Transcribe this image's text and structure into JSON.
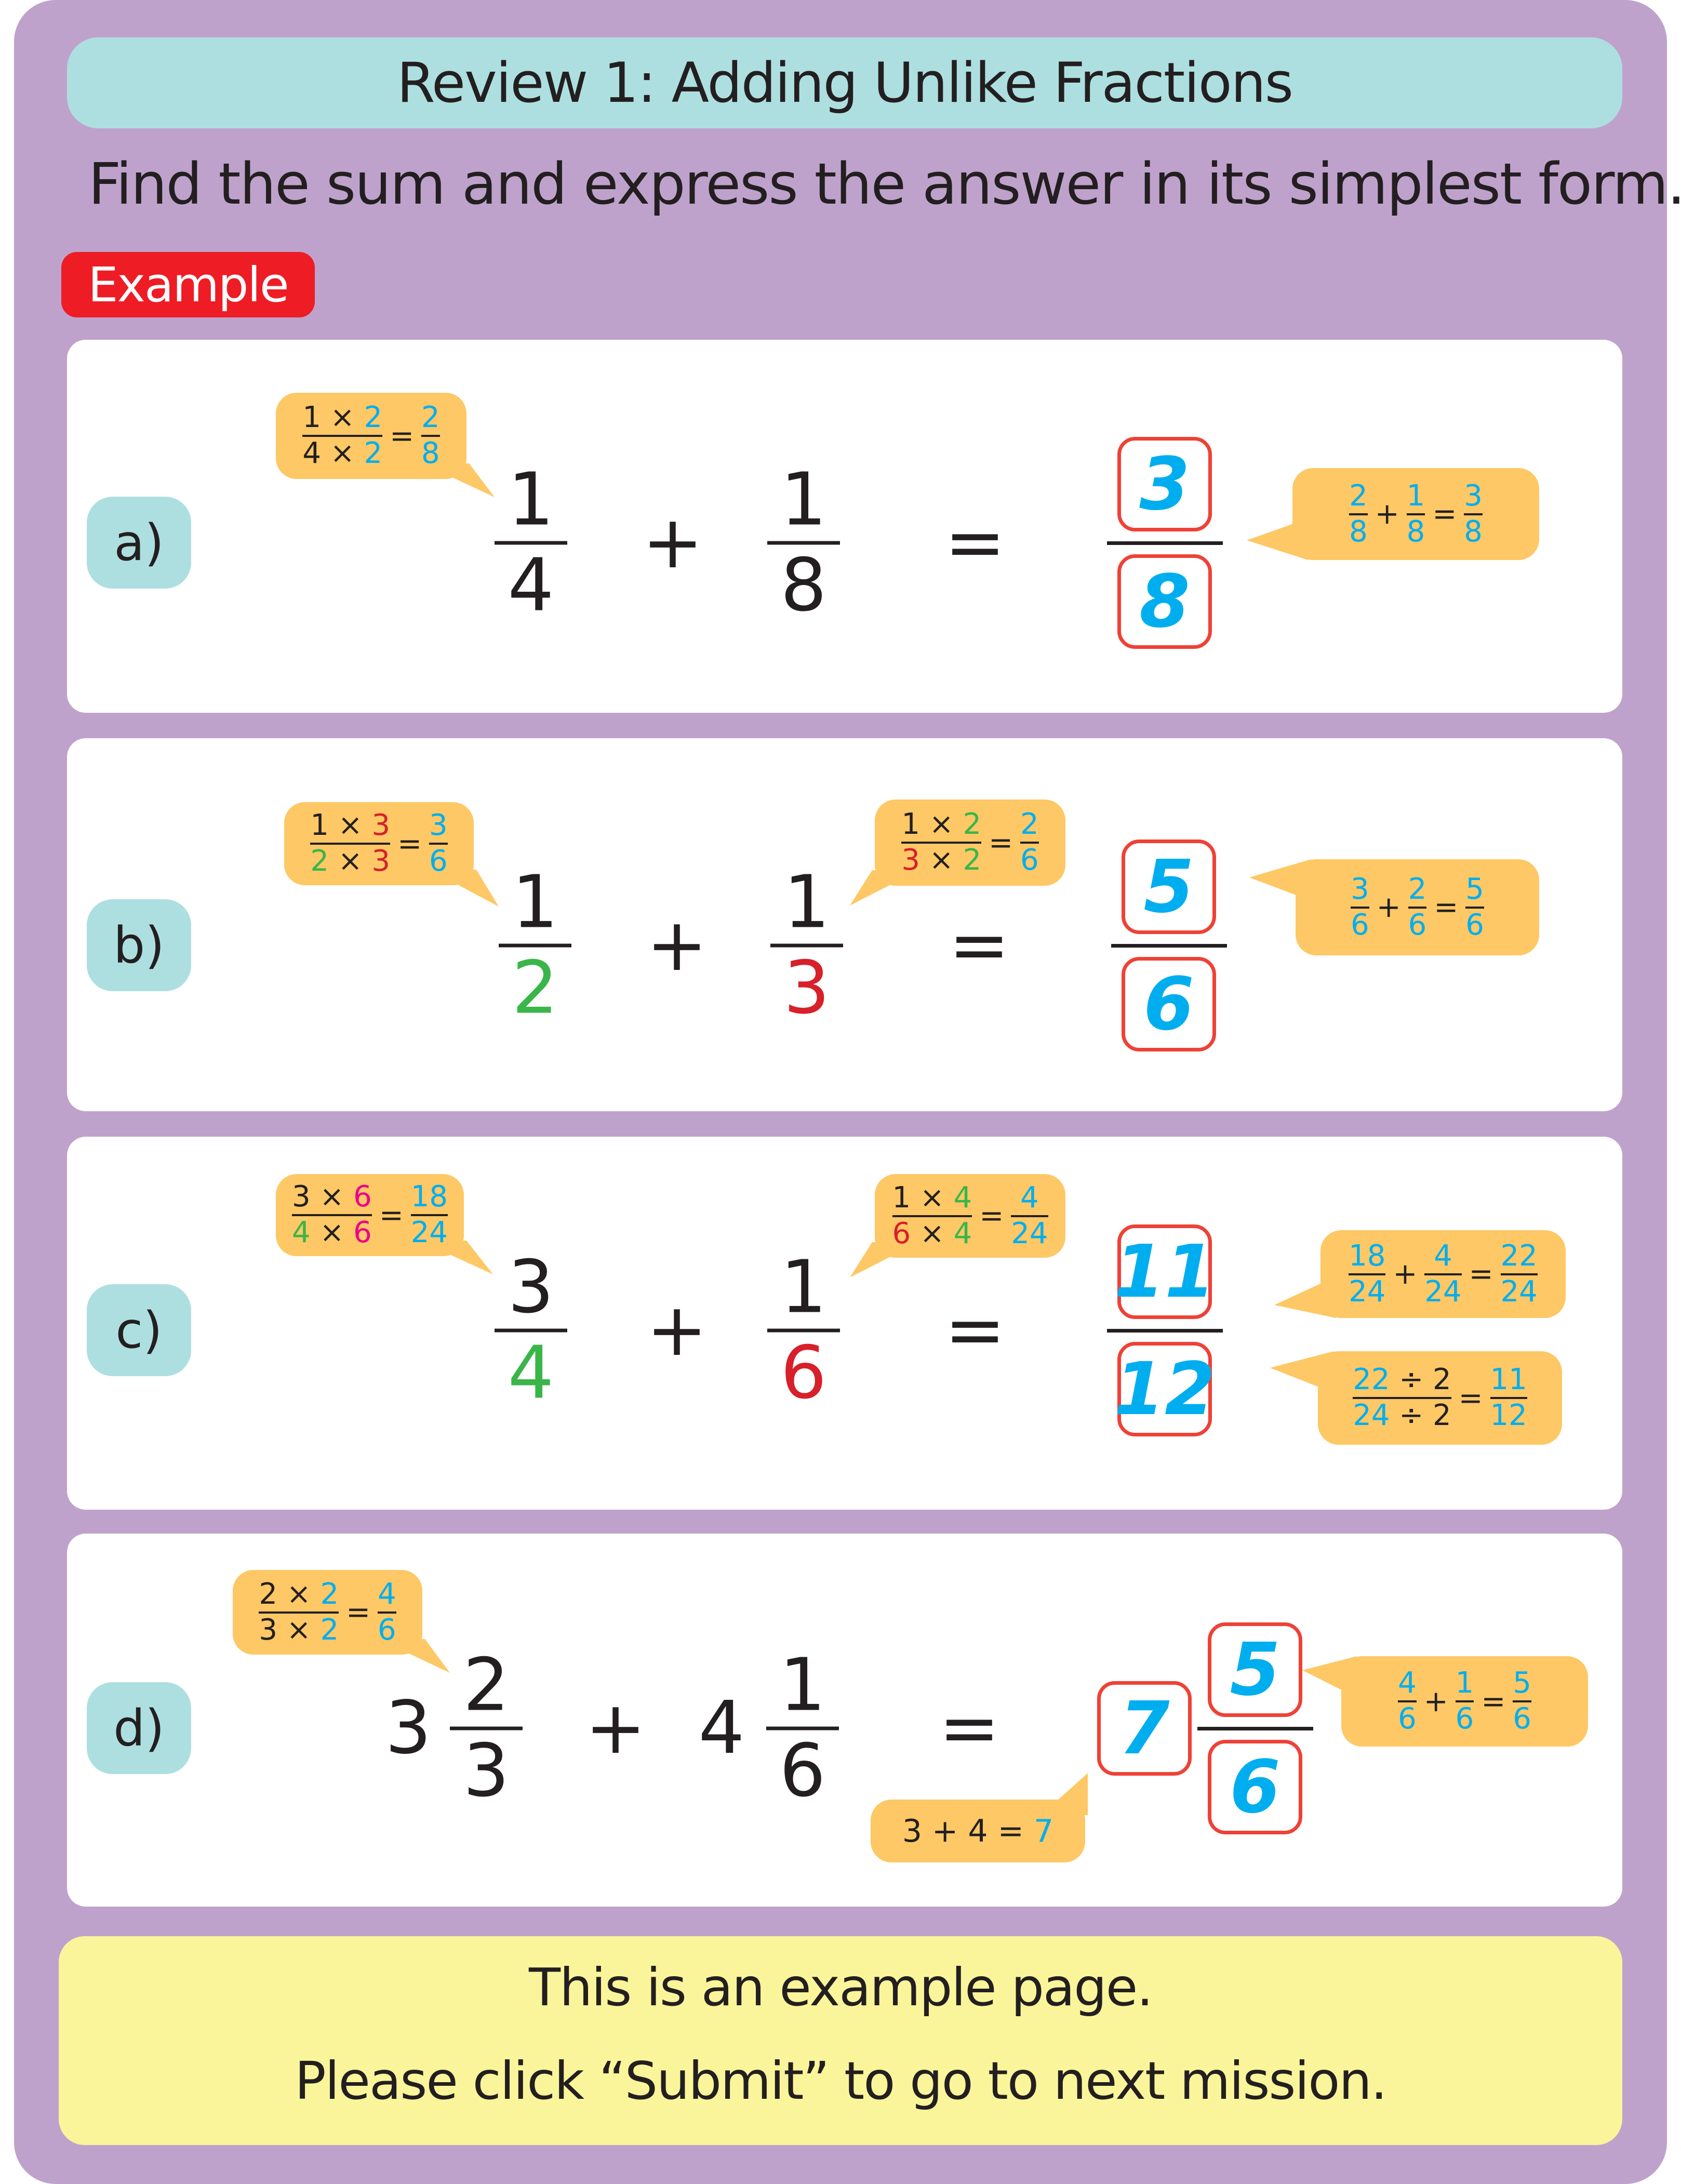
{
  "title": "Review 1: Adding Unlike Fractions",
  "instruction": "Find the sum and express the answer in its simplest form.",
  "example_badge": "Example",
  "colors": {
    "black": "#231F20",
    "blue": "#00AEEF",
    "green": "#3AB54A",
    "red": "#D7202A",
    "magenta": "#EC008C",
    "bubble": "#FDC865",
    "answer_box": "#EF4136",
    "pill": "#AEDFE0",
    "badge": "#EE1C25",
    "footer": "#FAF59A",
    "panel": "#BFA2CC"
  },
  "rows": [
    {
      "label": "a)",
      "terms": [
        {
          "n": {
            "t": "1",
            "c": "black"
          },
          "d": {
            "t": "4",
            "c": "black"
          }
        },
        {
          "n": {
            "t": "1",
            "c": "black"
          },
          "d": {
            "t": "8",
            "c": "black"
          }
        }
      ],
      "plus": "+",
      "equals": "=",
      "answer": {
        "n": "3",
        "d": "8"
      },
      "bubbles": [
        {
          "expr": [
            {
              "n": [
                {
                  "t": "1 × ",
                  "c": "black"
                },
                {
                  "t": "2",
                  "c": "blue"
                }
              ],
              "d": [
                {
                  "t": "4 × ",
                  "c": "black"
                },
                {
                  "t": "2",
                  "c": "blue"
                }
              ]
            },
            {
              "op": "="
            },
            {
              "n": [
                {
                  "t": "2",
                  "c": "blue"
                }
              ],
              "d": [
                {
                  "t": "8",
                  "c": "blue"
                }
              ]
            }
          ]
        },
        {
          "expr": [
            {
              "n": [
                {
                  "t": "2",
                  "c": "blue"
                }
              ],
              "d": [
                {
                  "t": "8",
                  "c": "blue"
                }
              ]
            },
            {
              "op": "+"
            },
            {
              "n": [
                {
                  "t": "1",
                  "c": "blue"
                }
              ],
              "d": [
                {
                  "t": "8",
                  "c": "blue"
                }
              ]
            },
            {
              "op": "="
            },
            {
              "n": [
                {
                  "t": "3",
                  "c": "blue"
                }
              ],
              "d": [
                {
                  "t": "8",
                  "c": "blue"
                }
              ]
            }
          ]
        }
      ]
    },
    {
      "label": "b)",
      "terms": [
        {
          "n": {
            "t": "1",
            "c": "black"
          },
          "d": {
            "t": "2",
            "c": "green"
          }
        },
        {
          "n": {
            "t": "1",
            "c": "black"
          },
          "d": {
            "t": "3",
            "c": "red"
          }
        }
      ],
      "plus": "+",
      "equals": "=",
      "answer": {
        "n": "5",
        "d": "6"
      },
      "bubbles": [
        {
          "expr": [
            {
              "n": [
                {
                  "t": "1 × ",
                  "c": "black"
                },
                {
                  "t": "3",
                  "c": "red"
                }
              ],
              "d": [
                {
                  "t": "2",
                  "c": "green"
                },
                {
                  "t": " × ",
                  "c": "black"
                },
                {
                  "t": "3",
                  "c": "red"
                }
              ]
            },
            {
              "op": "="
            },
            {
              "n": [
                {
                  "t": "3",
                  "c": "blue"
                }
              ],
              "d": [
                {
                  "t": "6",
                  "c": "blue"
                }
              ]
            }
          ]
        },
        {
          "expr": [
            {
              "n": [
                {
                  "t": "1 × ",
                  "c": "black"
                },
                {
                  "t": "2",
                  "c": "green"
                }
              ],
              "d": [
                {
                  "t": "3",
                  "c": "red"
                },
                {
                  "t": " × ",
                  "c": "black"
                },
                {
                  "t": "2",
                  "c": "green"
                }
              ]
            },
            {
              "op": "="
            },
            {
              "n": [
                {
                  "t": "2",
                  "c": "blue"
                }
              ],
              "d": [
                {
                  "t": "6",
                  "c": "blue"
                }
              ]
            }
          ]
        },
        {
          "expr": [
            {
              "n": [
                {
                  "t": "3",
                  "c": "blue"
                }
              ],
              "d": [
                {
                  "t": "6",
                  "c": "blue"
                }
              ]
            },
            {
              "op": "+"
            },
            {
              "n": [
                {
                  "t": "2",
                  "c": "blue"
                }
              ],
              "d": [
                {
                  "t": "6",
                  "c": "blue"
                }
              ]
            },
            {
              "op": "="
            },
            {
              "n": [
                {
                  "t": "5",
                  "c": "blue"
                }
              ],
              "d": [
                {
                  "t": "6",
                  "c": "blue"
                }
              ]
            }
          ]
        }
      ]
    },
    {
      "label": "c)",
      "terms": [
        {
          "n": {
            "t": "3",
            "c": "black"
          },
          "d": {
            "t": "4",
            "c": "green"
          }
        },
        {
          "n": {
            "t": "1",
            "c": "black"
          },
          "d": {
            "t": "6",
            "c": "red"
          }
        }
      ],
      "plus": "+",
      "equals": "=",
      "answer": {
        "n": "11",
        "d": "12"
      },
      "bubbles": [
        {
          "expr": [
            {
              "n": [
                {
                  "t": "3 × ",
                  "c": "black"
                },
                {
                  "t": "6",
                  "c": "magenta"
                }
              ],
              "d": [
                {
                  "t": "4",
                  "c": "green"
                },
                {
                  "t": " × ",
                  "c": "black"
                },
                {
                  "t": "6",
                  "c": "magenta"
                }
              ]
            },
            {
              "op": "="
            },
            {
              "n": [
                {
                  "t": "18",
                  "c": "blue"
                }
              ],
              "d": [
                {
                  "t": "24",
                  "c": "blue"
                }
              ]
            }
          ]
        },
        {
          "expr": [
            {
              "n": [
                {
                  "t": "1 × ",
                  "c": "black"
                },
                {
                  "t": "4",
                  "c": "green"
                }
              ],
              "d": [
                {
                  "t": "6",
                  "c": "red"
                },
                {
                  "t": " × ",
                  "c": "black"
                },
                {
                  "t": "4",
                  "c": "green"
                }
              ]
            },
            {
              "op": "="
            },
            {
              "n": [
                {
                  "t": "4",
                  "c": "blue"
                }
              ],
              "d": [
                {
                  "t": "24",
                  "c": "blue"
                }
              ]
            }
          ]
        },
        {
          "expr": [
            {
              "n": [
                {
                  "t": "18",
                  "c": "blue"
                }
              ],
              "d": [
                {
                  "t": "24",
                  "c": "blue"
                }
              ]
            },
            {
              "op": "+"
            },
            {
              "n": [
                {
                  "t": "4",
                  "c": "blue"
                }
              ],
              "d": [
                {
                  "t": "24",
                  "c": "blue"
                }
              ]
            },
            {
              "op": "="
            },
            {
              "n": [
                {
                  "t": "22",
                  "c": "blue"
                }
              ],
              "d": [
                {
                  "t": "24",
                  "c": "blue"
                }
              ]
            }
          ]
        },
        {
          "expr": [
            {
              "n": [
                {
                  "t": "22",
                  "c": "blue"
                },
                {
                  "t": " ÷ 2",
                  "c": "black"
                }
              ],
              "d": [
                {
                  "t": "24",
                  "c": "blue"
                },
                {
                  "t": " ÷ 2",
                  "c": "black"
                }
              ]
            },
            {
              "op": "="
            },
            {
              "n": [
                {
                  "t": "11",
                  "c": "blue"
                }
              ],
              "d": [
                {
                  "t": "12",
                  "c": "blue"
                }
              ]
            }
          ]
        }
      ]
    },
    {
      "label": "d)",
      "terms": [
        {
          "w": "3",
          "n": {
            "t": "2",
            "c": "black"
          },
          "d": {
            "t": "3",
            "c": "black"
          }
        },
        {
          "w": "4",
          "n": {
            "t": "1",
            "c": "black"
          },
          "d": {
            "t": "6",
            "c": "black"
          }
        }
      ],
      "plus": "+",
      "equals": "=",
      "answer": {
        "w": "7",
        "n": "5",
        "d": "6"
      },
      "bubbles": [
        {
          "expr": [
            {
              "n": [
                {
                  "t": "2 × ",
                  "c": "black"
                },
                {
                  "t": "2",
                  "c": "blue"
                }
              ],
              "d": [
                {
                  "t": "3 × ",
                  "c": "black"
                },
                {
                  "t": "2",
                  "c": "blue"
                }
              ]
            },
            {
              "op": "="
            },
            {
              "n": [
                {
                  "t": "4",
                  "c": "blue"
                }
              ],
              "d": [
                {
                  "t": "6",
                  "c": "blue"
                }
              ]
            }
          ]
        },
        {
          "expr": [
            {
              "t": [
                {
                  "t": "3 + 4 = ",
                  "c": "black"
                },
                {
                  "t": "7",
                  "c": "blue"
                }
              ]
            }
          ]
        },
        {
          "expr": [
            {
              "n": [
                {
                  "t": "4",
                  "c": "blue"
                }
              ],
              "d": [
                {
                  "t": "6",
                  "c": "blue"
                }
              ]
            },
            {
              "op": "+"
            },
            {
              "n": [
                {
                  "t": "1",
                  "c": "blue"
                }
              ],
              "d": [
                {
                  "t": "6",
                  "c": "blue"
                }
              ]
            },
            {
              "op": "="
            },
            {
              "n": [
                {
                  "t": "5",
                  "c": "blue"
                }
              ],
              "d": [
                {
                  "t": "6",
                  "c": "blue"
                }
              ]
            }
          ]
        }
      ]
    }
  ],
  "footer": {
    "line1": "This is an example page.",
    "line2": "Please click “Submit” to go to next mission."
  }
}
